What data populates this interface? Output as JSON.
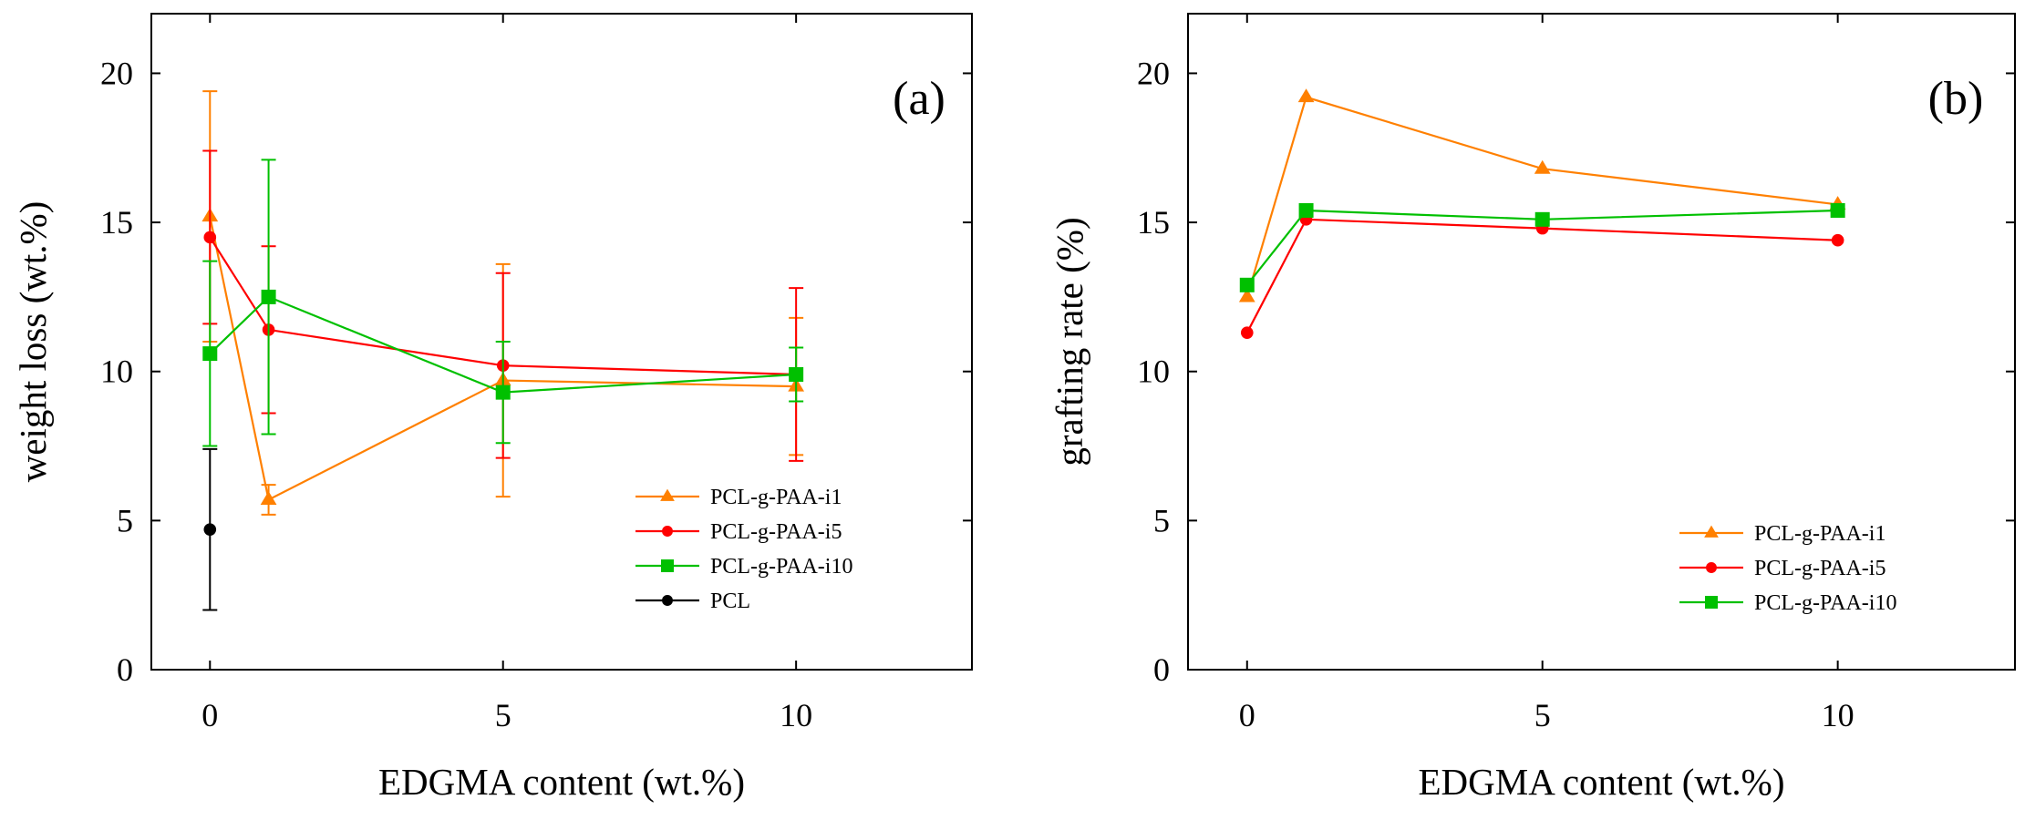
{
  "chart_data": [
    {
      "type": "line",
      "panel_label": "(a)",
      "xlabel": "EDGMA content (wt.%)",
      "ylabel": "weight loss (wt.%)",
      "xlim": [
        -1,
        13
      ],
      "ylim": [
        0,
        22
      ],
      "xticks": [
        0,
        5,
        10
      ],
      "yticks": [
        0,
        5,
        10,
        15,
        20
      ],
      "grid": false,
      "legend_position": "bottom-right",
      "series": [
        {
          "name": "PCL-g-PAA-i1",
          "color": "#FF8000",
          "marker": "triangle",
          "x": [
            0,
            1,
            5,
            10
          ],
          "y": [
            15.2,
            5.7,
            9.7,
            9.5
          ],
          "err": [
            4.2,
            0.5,
            3.9,
            2.3
          ]
        },
        {
          "name": "PCL-g-PAA-i5",
          "color": "#FF0000",
          "marker": "circle",
          "x": [
            0,
            1,
            5,
            10
          ],
          "y": [
            14.5,
            11.4,
            10.2,
            9.9
          ],
          "err": [
            2.9,
            2.8,
            3.1,
            2.9
          ]
        },
        {
          "name": "PCL-g-PAA-i10",
          "color": "#00C000",
          "marker": "square",
          "x": [
            0,
            1,
            5,
            10
          ],
          "y": [
            10.6,
            12.5,
            9.3,
            9.9
          ],
          "err": [
            3.1,
            4.6,
            1.7,
            0.9
          ]
        },
        {
          "name": "PCL",
          "color": "#000000",
          "marker": "circle",
          "x": [
            0
          ],
          "y": [
            4.7
          ],
          "err": [
            2.7
          ]
        }
      ]
    },
    {
      "type": "line",
      "panel_label": "(b)",
      "xlabel": "EDGMA content (wt.%)",
      "ylabel": "grafting rate (%)",
      "xlim": [
        -1,
        13
      ],
      "ylim": [
        0,
        22
      ],
      "xticks": [
        0,
        5,
        10
      ],
      "yticks": [
        0,
        5,
        10,
        15,
        20
      ],
      "grid": false,
      "legend_position": "bottom-right",
      "series": [
        {
          "name": "PCL-g-PAA-i1",
          "color": "#FF8000",
          "marker": "triangle",
          "x": [
            0,
            1,
            5,
            10
          ],
          "y": [
            12.5,
            19.2,
            16.8,
            15.6
          ]
        },
        {
          "name": "PCL-g-PAA-i5",
          "color": "#FF0000",
          "marker": "circle",
          "x": [
            0,
            1,
            5,
            10
          ],
          "y": [
            11.3,
            15.1,
            14.8,
            14.4
          ]
        },
        {
          "name": "PCL-g-PAA-i10",
          "color": "#00C000",
          "marker": "square",
          "x": [
            0,
            1,
            5,
            10
          ],
          "y": [
            12.9,
            15.4,
            15.1,
            15.4
          ]
        }
      ]
    }
  ]
}
